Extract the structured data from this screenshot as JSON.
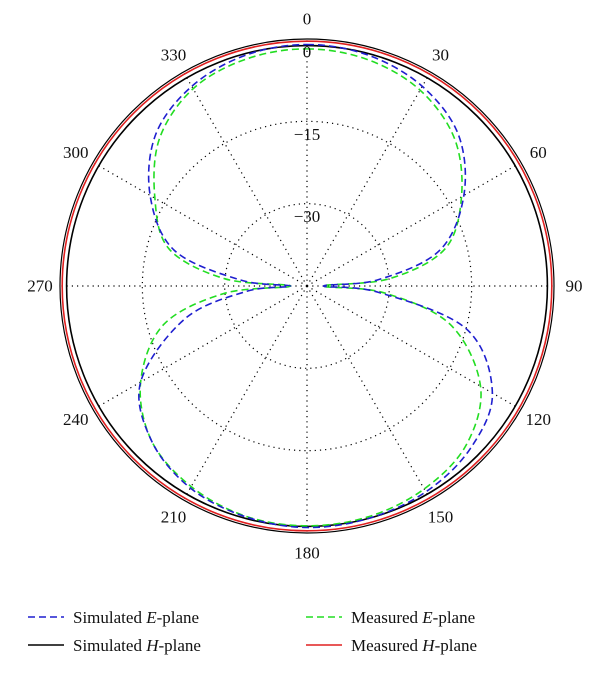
{
  "chart_data": {
    "type": "polar",
    "angular_unit": "degrees",
    "angular_ticks": [
      0,
      30,
      60,
      90,
      120,
      150,
      180,
      210,
      240,
      270,
      300,
      330
    ],
    "angular_tick_labels": [
      "0",
      "30",
      "60",
      "90",
      "120",
      "150",
      "180",
      "210",
      "240",
      "270",
      "300",
      "330"
    ],
    "radial_tick_labels": [
      "0",
      "−15",
      "−30"
    ],
    "radial_range": [
      -45,
      0
    ],
    "grid": true,
    "legend_position": "bottom",
    "series": [
      {
        "name": "Simulated E-plane",
        "color": "#1f1fcf",
        "dash": "dashed",
        "points": [
          [
            0,
            -1
          ],
          [
            15,
            -1.5
          ],
          [
            30,
            -3
          ],
          [
            45,
            -6
          ],
          [
            60,
            -12
          ],
          [
            75,
            -20
          ],
          [
            85,
            -32
          ],
          [
            90,
            -42
          ],
          [
            95,
            -32
          ],
          [
            105,
            -15
          ],
          [
            120,
            -6
          ],
          [
            135,
            -3
          ],
          [
            150,
            -1.7
          ],
          [
            165,
            -1.2
          ],
          [
            180,
            -1
          ],
          [
            195,
            -1.5
          ],
          [
            210,
            -2.5
          ],
          [
            225,
            -5
          ],
          [
            240,
            -10
          ],
          [
            255,
            -22
          ],
          [
            265,
            -34
          ],
          [
            270,
            -42
          ],
          [
            275,
            -33
          ],
          [
            285,
            -20
          ],
          [
            300,
            -12
          ],
          [
            315,
            -6
          ],
          [
            330,
            -3
          ],
          [
            345,
            -1.5
          ],
          [
            360,
            -1
          ]
        ]
      },
      {
        "name": "Measured E-plane",
        "color": "#22dd22",
        "dash": "dashed",
        "points": [
          [
            0,
            -1.8
          ],
          [
            15,
            -2.3
          ],
          [
            30,
            -3.8
          ],
          [
            45,
            -7
          ],
          [
            60,
            -12.5
          ],
          [
            75,
            -19
          ],
          [
            85,
            -30
          ],
          [
            90,
            -42
          ],
          [
            95,
            -31
          ],
          [
            105,
            -18
          ],
          [
            120,
            -8.5
          ],
          [
            135,
            -4
          ],
          [
            150,
            -2.3
          ],
          [
            165,
            -1.5
          ],
          [
            180,
            -1.3
          ],
          [
            195,
            -1.6
          ],
          [
            210,
            -2.8
          ],
          [
            225,
            -5
          ],
          [
            240,
            -10
          ],
          [
            255,
            -18
          ],
          [
            265,
            -30
          ],
          [
            270,
            -42
          ],
          [
            275,
            -30
          ],
          [
            285,
            -19
          ],
          [
            300,
            -13
          ],
          [
            315,
            -7
          ],
          [
            330,
            -3.5
          ],
          [
            345,
            -2.2
          ],
          [
            360,
            -1.8
          ]
        ]
      },
      {
        "name": "Simulated H-plane",
        "color": "#000000",
        "dash": "solid",
        "points": [
          [
            0,
            -1.2
          ],
          [
            90,
            -1.2
          ],
          [
            180,
            -1.2
          ],
          [
            270,
            -1.2
          ],
          [
            360,
            -1.2
          ]
        ]
      },
      {
        "name": "Measured H-plane",
        "color": "#e02020",
        "dash": "solid",
        "points": [
          [
            0,
            -0.4
          ],
          [
            90,
            -0.4
          ],
          [
            180,
            -0.4
          ],
          [
            270,
            -0.4
          ],
          [
            360,
            -0.4
          ]
        ]
      }
    ]
  },
  "legend": [
    {
      "name": "Simulated E-plane",
      "prefix": "Simulated ",
      "italic": "E",
      "suffix": "-plane",
      "color": "#1f1fcf",
      "dash": "dashed"
    },
    {
      "name": "Measured E-plane",
      "prefix": "Measured ",
      "italic": "E",
      "suffix": "-plane",
      "color": "#22dd22",
      "dash": "dashed"
    },
    {
      "name": "Simulated H-plane",
      "prefix": "Simulated ",
      "italic": "H",
      "suffix": "-plane",
      "color": "#000000",
      "dash": "solid"
    },
    {
      "name": "Measured H-plane",
      "prefix": "Measured ",
      "italic": "H",
      "suffix": "-plane",
      "color": "#e02020",
      "dash": "solid"
    }
  ]
}
